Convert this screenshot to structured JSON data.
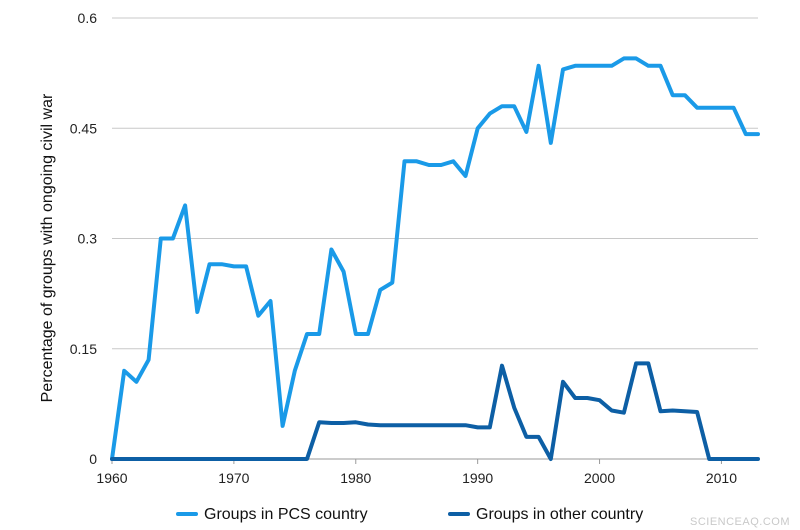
{
  "watermark": "SCIENCEAQ.COM",
  "chart_data": {
    "type": "line",
    "title": "",
    "xlabel": "",
    "ylabel": "Percentage of groups with ongoing civil war",
    "xlim": [
      1960,
      2013
    ],
    "ylim": [
      0,
      0.6
    ],
    "x_ticks": [
      1960,
      1970,
      1980,
      1990,
      2000,
      2010
    ],
    "x_tick_labels": [
      "1960",
      "1970",
      "1980",
      "1990",
      "2000",
      "2010"
    ],
    "y_ticks": [
      0,
      0.15,
      0.3,
      0.45,
      0.6
    ],
    "y_tick_labels": [
      "0",
      "0.15",
      "0.3",
      "0.45",
      "0.6"
    ],
    "grid": "horizontal",
    "legend_position": "bottom",
    "x": [
      1960,
      1961,
      1962,
      1963,
      1964,
      1965,
      1966,
      1967,
      1968,
      1969,
      1970,
      1971,
      1972,
      1973,
      1974,
      1975,
      1976,
      1977,
      1978,
      1979,
      1980,
      1981,
      1982,
      1983,
      1984,
      1985,
      1986,
      1987,
      1988,
      1989,
      1990,
      1991,
      1992,
      1993,
      1994,
      1995,
      1996,
      1997,
      1998,
      1999,
      2000,
      2001,
      2002,
      2003,
      2004,
      2005,
      2006,
      2007,
      2008,
      2009,
      2010,
      2011,
      2012,
      2013
    ],
    "series": [
      {
        "name": "Groups in PCS country",
        "color": "#1a9ae8",
        "values": [
          0.0,
          0.12,
          0.105,
          0.135,
          0.3,
          0.3,
          0.345,
          0.2,
          0.265,
          0.265,
          0.262,
          0.262,
          0.195,
          0.215,
          0.045,
          0.12,
          0.17,
          0.17,
          0.285,
          0.255,
          0.17,
          0.17,
          0.23,
          0.24,
          0.405,
          0.405,
          0.4,
          0.4,
          0.405,
          0.385,
          0.45,
          0.47,
          0.48,
          0.48,
          0.445,
          0.535,
          0.43,
          0.53,
          0.535,
          0.535,
          0.535,
          0.535,
          0.545,
          0.545,
          0.535,
          0.535,
          0.495,
          0.495,
          0.478,
          0.478,
          0.478,
          0.478,
          0.442,
          0.442
        ]
      },
      {
        "name": "Groups in other country",
        "color": "#0d5fa5",
        "values": [
          0,
          0,
          0,
          0,
          0,
          0,
          0,
          0,
          0,
          0,
          0,
          0,
          0,
          0,
          0,
          0,
          0,
          0.05,
          0.049,
          0.049,
          0.05,
          0.047,
          0.046,
          0.046,
          0.046,
          0.046,
          0.046,
          0.046,
          0.046,
          0.046,
          0.043,
          0.043,
          0.127,
          0.07,
          0.03,
          0.03,
          0.0,
          0.105,
          0.083,
          0.083,
          0.08,
          0.066,
          0.063,
          0.13,
          0.13,
          0.065,
          0.066,
          0.065,
          0.064,
          0.0,
          0.0,
          0.0,
          0.0,
          0.0
        ]
      }
    ]
  }
}
